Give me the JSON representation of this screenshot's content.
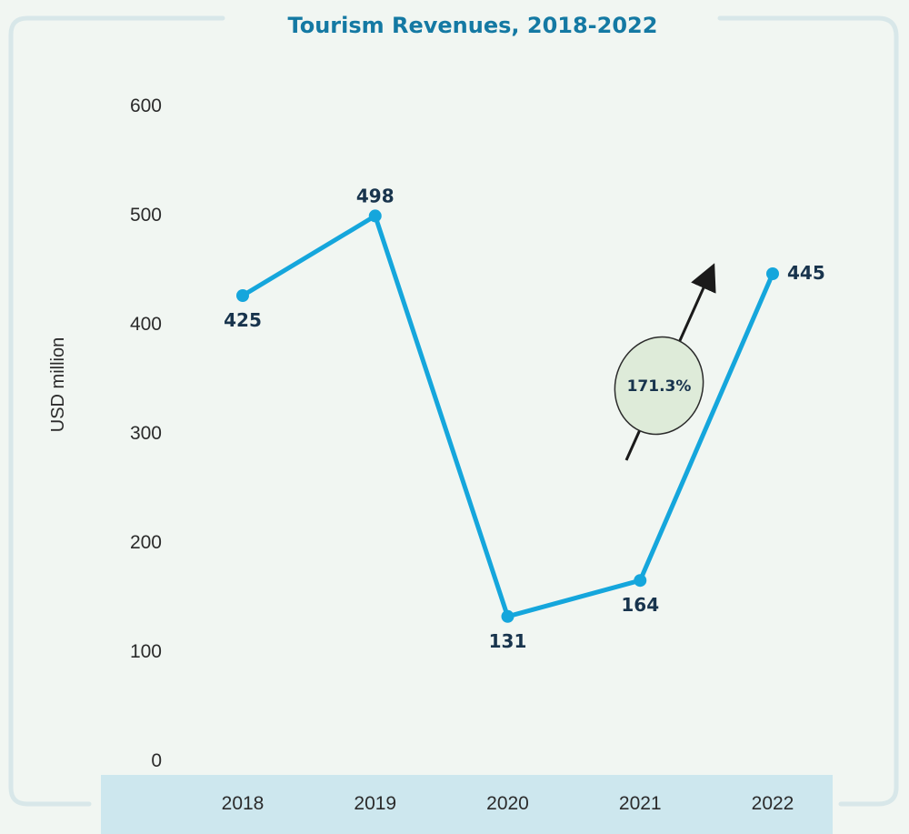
{
  "chart_data": {
    "type": "line",
    "title": "Tourism Revenues, 2018-2022",
    "ylabel": "USD million",
    "xlabel": "",
    "categories": [
      "2018",
      "2019",
      "2020",
      "2021",
      "2022"
    ],
    "values": [
      425,
      498,
      131,
      164,
      445
    ],
    "ylim": [
      0,
      600
    ],
    "yticks": [
      0,
      100,
      200,
      300,
      400,
      500,
      600
    ],
    "grid": false,
    "annotation": {
      "text": "171.3%",
      "between": [
        "2021",
        "2022"
      ]
    }
  },
  "colors": {
    "line": "#15a6dc",
    "frame": "#d8e7e9",
    "axis_band": "#cde7ee",
    "title": "#1479a3",
    "data_label": "#18344d",
    "badge_fill": "#deebd9",
    "background": "#f1f6f2"
  },
  "icons": {
    "growth_arrow": "arrow-up-right-icon"
  }
}
